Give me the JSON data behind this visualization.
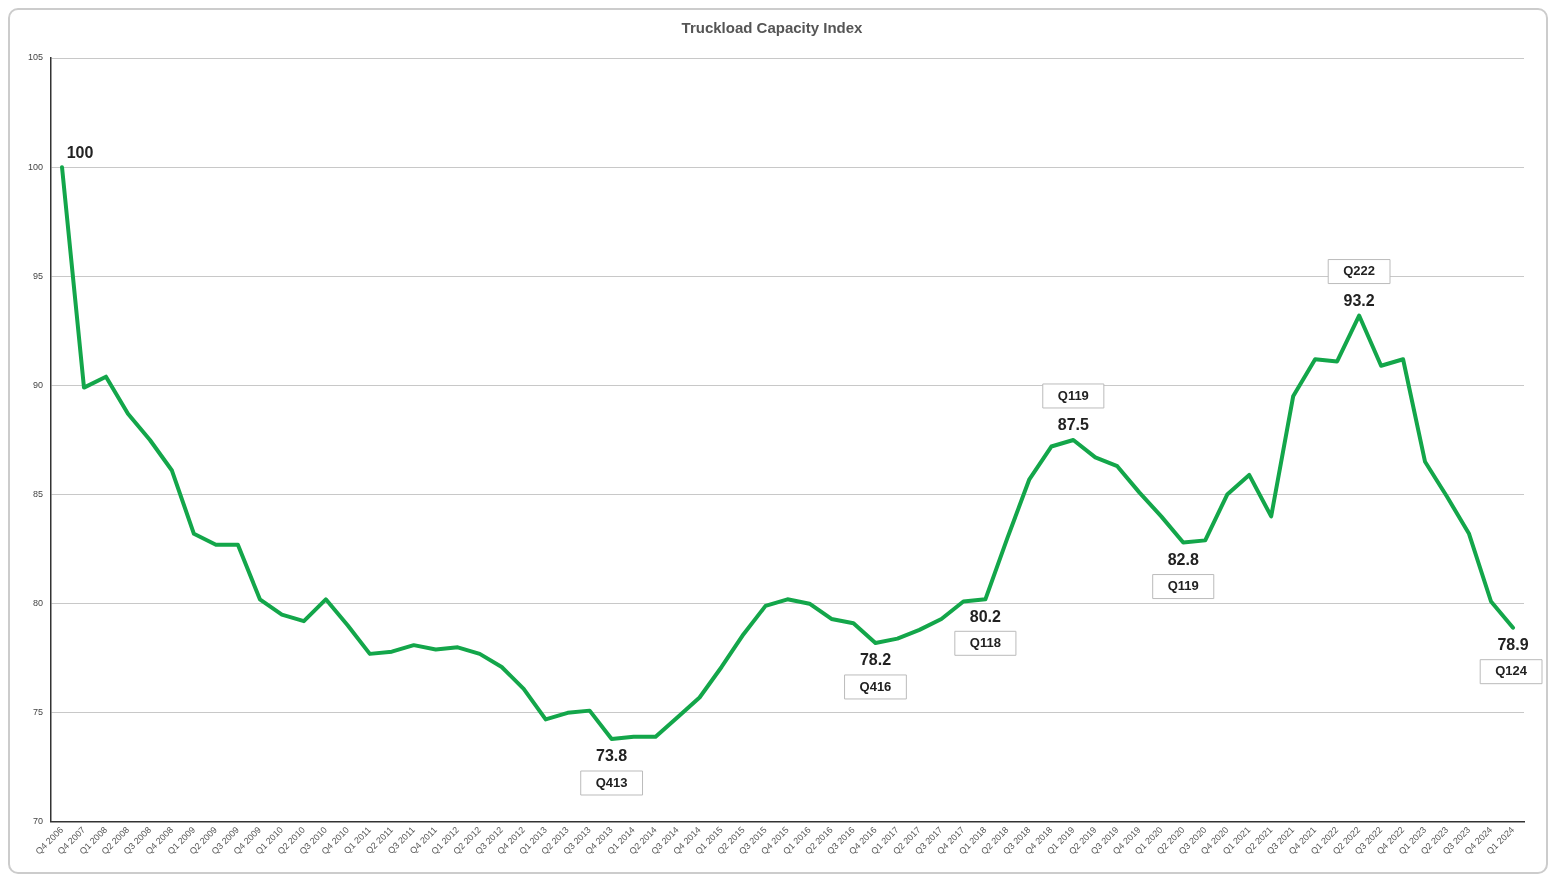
{
  "chart_data": {
    "type": "line",
    "title": "Truckload Capacity Index",
    "categories": [
      "Q4 2006",
      "Q4 2007",
      "Q1 2008",
      "Q2 2008",
      "Q3 2008",
      "Q4 2008",
      "Q1 2009",
      "Q2 2009",
      "Q3 2009",
      "Q4 2009",
      "Q1 2010",
      "Q2 2010",
      "Q3 2010",
      "Q4 2010",
      "Q1 2011",
      "Q2 2011",
      "Q3 2011",
      "Q4 2011",
      "Q1 2012",
      "Q2 2012",
      "Q3 2012",
      "Q4 2012",
      "Q1 2013",
      "Q2 2013",
      "Q3 2013",
      "Q4 2013",
      "Q1 2014",
      "Q2 2014",
      "Q3 2014",
      "Q4 2014",
      "Q1 2015",
      "Q2 2015",
      "Q3 2015",
      "Q4 2015",
      "Q1 2016",
      "Q2 2016",
      "Q3 2016",
      "Q4 2016",
      "Q1 2017",
      "Q2 2017",
      "Q3 2017",
      "Q4 2017",
      "Q1 2018",
      "Q2 2018",
      "Q3 2018",
      "Q4 2018",
      "Q1 2019",
      "Q2 2019",
      "Q3 2019",
      "Q4 2019",
      "Q1 2020",
      "Q2 2020",
      "Q3 2020",
      "Q4 2020",
      "Q1 2021",
      "Q2 2021",
      "Q3 2021",
      "Q4 2021",
      "Q1 2022",
      "Q2 2022",
      "Q3 2022",
      "Q4 2022",
      "Q1 2023",
      "Q2 2023",
      "Q3 2023",
      "Q4 2024",
      "Q1 2024"
    ],
    "series": [
      {
        "color": "#13a64a",
        "values": [
          100,
          89.9,
          90.4,
          88.7,
          87.5,
          86.1,
          83.2,
          82.7,
          82.7,
          80.2,
          79.5,
          79.2,
          80.2,
          79.0,
          77.7,
          77.8,
          78.1,
          77.9,
          78.0,
          77.7,
          77.1,
          76.1,
          74.7,
          75.0,
          75.1,
          73.8,
          73.9,
          73.9,
          74.8,
          75.7,
          77.1,
          78.6,
          79.9,
          80.2,
          80.0,
          79.3,
          79.1,
          78.2,
          78.4,
          78.8,
          79.3,
          80.1,
          80.2,
          83.0,
          85.7,
          87.2,
          87.5,
          86.7,
          86.3,
          85.1,
          84.0,
          82.8,
          82.9,
          85.0,
          85.9,
          84.0,
          89.5,
          91.2,
          91.1,
          93.2,
          90.9,
          91.2,
          86.5,
          84.9,
          83.2,
          80.1,
          78.9
        ],
        "value_labels": [
          "100",
          null,
          null,
          null,
          null,
          null,
          null,
          null,
          null,
          null,
          null,
          null,
          null,
          null,
          null,
          null,
          null,
          null,
          null,
          null,
          null,
          null,
          null,
          null,
          null,
          "73.8",
          null,
          null,
          null,
          null,
          null,
          null,
          null,
          null,
          null,
          null,
          null,
          "78.2",
          null,
          null,
          null,
          null,
          "80.2",
          null,
          null,
          null,
          "87.5",
          null,
          null,
          null,
          null,
          "82.8",
          null,
          null,
          null,
          null,
          null,
          null,
          null,
          "93.2",
          null,
          null,
          null,
          null,
          null,
          null,
          "78.9"
        ]
      }
    ],
    "annotations": [
      {
        "text": "Q413",
        "x": "Q4 2013",
        "y": 73.8
      },
      {
        "text": "Q416",
        "x": "Q4 2016",
        "y": 78.2
      },
      {
        "text": "Q118",
        "x": "Q1 2018",
        "y": 80.2
      },
      {
        "text": "Q119",
        "x": "Q1 2019",
        "y": 87.5
      },
      {
        "text": "Q119",
        "x": "Q2 2020",
        "y": 82.8
      },
      {
        "text": "Q222",
        "x": "Q2 2022",
        "y": 93.2
      },
      {
        "text": "Q124",
        "x": "Q1 2024",
        "y": 78.9
      }
    ],
    "ylim": [
      70,
      105
    ],
    "yticks": [
      70,
      75,
      80,
      85,
      90,
      95,
      100,
      105
    ],
    "grid": "y",
    "legend": false,
    "marker": "none",
    "line_style": "solid"
  }
}
